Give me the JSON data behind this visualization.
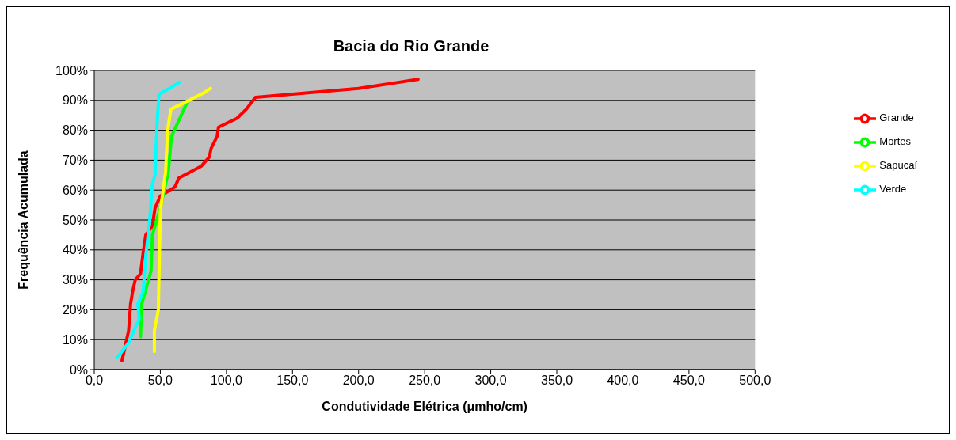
{
  "chart_data": {
    "type": "line",
    "title": "Bacia  do Rio Grande",
    "xlabel": "Condutividade Elétrica (μmho/cm)",
    "ylabel": "Frequência Acumulada",
    "xlim": [
      0,
      500
    ],
    "xticks": [
      {
        "value": 0,
        "label": "0,0"
      },
      {
        "value": 50,
        "label": "50,0"
      },
      {
        "value": 100,
        "label": "100,0"
      },
      {
        "value": 150,
        "label": "150,0"
      },
      {
        "value": 200,
        "label": "200,0"
      },
      {
        "value": 250,
        "label": "250,0"
      },
      {
        "value": 300,
        "label": "300,0"
      },
      {
        "value": 350,
        "label": "350,0"
      },
      {
        "value": 400,
        "label": "400,0"
      },
      {
        "value": 450,
        "label": "450,0"
      },
      {
        "value": 500,
        "label": "500,0"
      }
    ],
    "ylim": [
      0,
      100
    ],
    "yticks": [
      {
        "value": 0,
        "label": "0%"
      },
      {
        "value": 10,
        "label": "10%"
      },
      {
        "value": 20,
        "label": "20%"
      },
      {
        "value": 30,
        "label": "30%"
      },
      {
        "value": 40,
        "label": "40%"
      },
      {
        "value": 50,
        "label": "50%"
      },
      {
        "value": 60,
        "label": "60%"
      },
      {
        "value": 70,
        "label": "70%"
      },
      {
        "value": 80,
        "label": "80%"
      },
      {
        "value": 90,
        "label": "90%"
      },
      {
        "value": 100,
        "label": "100%"
      }
    ],
    "grid": "y",
    "legend": "right",
    "marker": "none",
    "line_style": "solid",
    "series": [
      {
        "name": "Grande",
        "color": "#ff0000",
        "x": [
          21,
          24,
          26,
          27.5,
          29,
          31,
          35,
          37,
          39,
          44,
          46,
          50,
          61,
          64,
          81,
          87,
          88.5,
          93,
          94,
          108,
          115,
          122,
          200,
          245
        ],
        "values": [
          3,
          9,
          13,
          22,
          26,
          30,
          32,
          39,
          45,
          48,
          54,
          58,
          61,
          64,
          68,
          71,
          74,
          78,
          81,
          84,
          87,
          91,
          94,
          97
        ]
      },
      {
        "name": "Mortes",
        "color": "#00ff00",
        "x": [
          35,
          36,
          43,
          44,
          50,
          56,
          58.5,
          70
        ],
        "values": [
          11,
          22,
          33,
          45,
          54,
          66,
          78,
          89
        ]
      },
      {
        "name": "Verde",
        "color": "#00ffff",
        "x": [
          17.5,
          26,
          34,
          33,
          37,
          39,
          42,
          44,
          46,
          47.5,
          49,
          64.5
        ],
        "values": [
          4,
          9,
          17,
          22,
          26,
          38,
          50,
          62,
          65,
          82,
          92,
          96
        ]
      },
      {
        "name": "Sapucaí",
        "color": "#ffff00",
        "x": [
          45.5,
          45.5,
          48.5,
          50,
          54,
          55.5,
          58,
          83,
          88
        ],
        "values": [
          6,
          13,
          20,
          53,
          66,
          80,
          87,
          92.5,
          94
        ]
      }
    ]
  }
}
